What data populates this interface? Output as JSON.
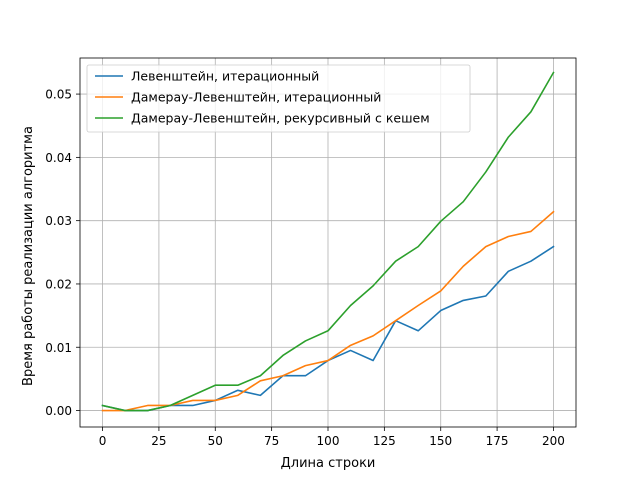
{
  "chart_data": {
    "type": "line",
    "title": "",
    "xlabel": "Длина строки",
    "ylabel": "Время работы реализации алгоритма",
    "xlim": [
      -10,
      210
    ],
    "ylim": [
      -0.0026,
      0.0557
    ],
    "xticks": [
      0,
      25,
      50,
      75,
      100,
      125,
      150,
      175,
      200
    ],
    "xtick_labels": [
      "0",
      "25",
      "50",
      "75",
      "100",
      "125",
      "150",
      "175",
      "200"
    ],
    "yticks": [
      0.0,
      0.01,
      0.02,
      0.03,
      0.04,
      0.05
    ],
    "ytick_labels": [
      "0.00",
      "0.01",
      "0.02",
      "0.03",
      "0.04",
      "0.05"
    ],
    "grid": true,
    "legend_position": "top-left",
    "x": [
      0,
      10,
      20,
      30,
      40,
      50,
      60,
      70,
      80,
      90,
      100,
      110,
      120,
      130,
      140,
      150,
      160,
      170,
      180,
      190,
      200
    ],
    "series": [
      {
        "name": "Левенштейн, итерационный",
        "color": "#1f77b4",
        "values": [
          0.0008,
          0.0,
          0.0,
          0.0008,
          0.0008,
          0.0016,
          0.0032,
          0.0024,
          0.0055,
          0.0055,
          0.0079,
          0.0095,
          0.0079,
          0.0142,
          0.0126,
          0.0158,
          0.0174,
          0.0181,
          0.022,
          0.0236,
          0.0259
        ]
      },
      {
        "name": "Дамерау-Левенштейн, итерационный",
        "color": "#ff7f0e",
        "values": [
          0.0,
          0.0,
          0.0008,
          0.0008,
          0.0016,
          0.0016,
          0.0024,
          0.0047,
          0.0055,
          0.0071,
          0.0079,
          0.0103,
          0.0118,
          0.0142,
          0.0166,
          0.0189,
          0.0228,
          0.0259,
          0.0275,
          0.0283,
          0.0314
        ]
      },
      {
        "name": "Дамерау-Левенштейн, рекурсивный с кешем",
        "color": "#2ca02c",
        "values": [
          0.0008,
          0.0,
          0.0,
          0.0008,
          0.0024,
          0.004,
          0.004,
          0.0055,
          0.0087,
          0.011,
          0.0126,
          0.0166,
          0.0197,
          0.0236,
          0.0259,
          0.0299,
          0.033,
          0.0377,
          0.0432,
          0.0472,
          0.0534
        ]
      }
    ]
  }
}
